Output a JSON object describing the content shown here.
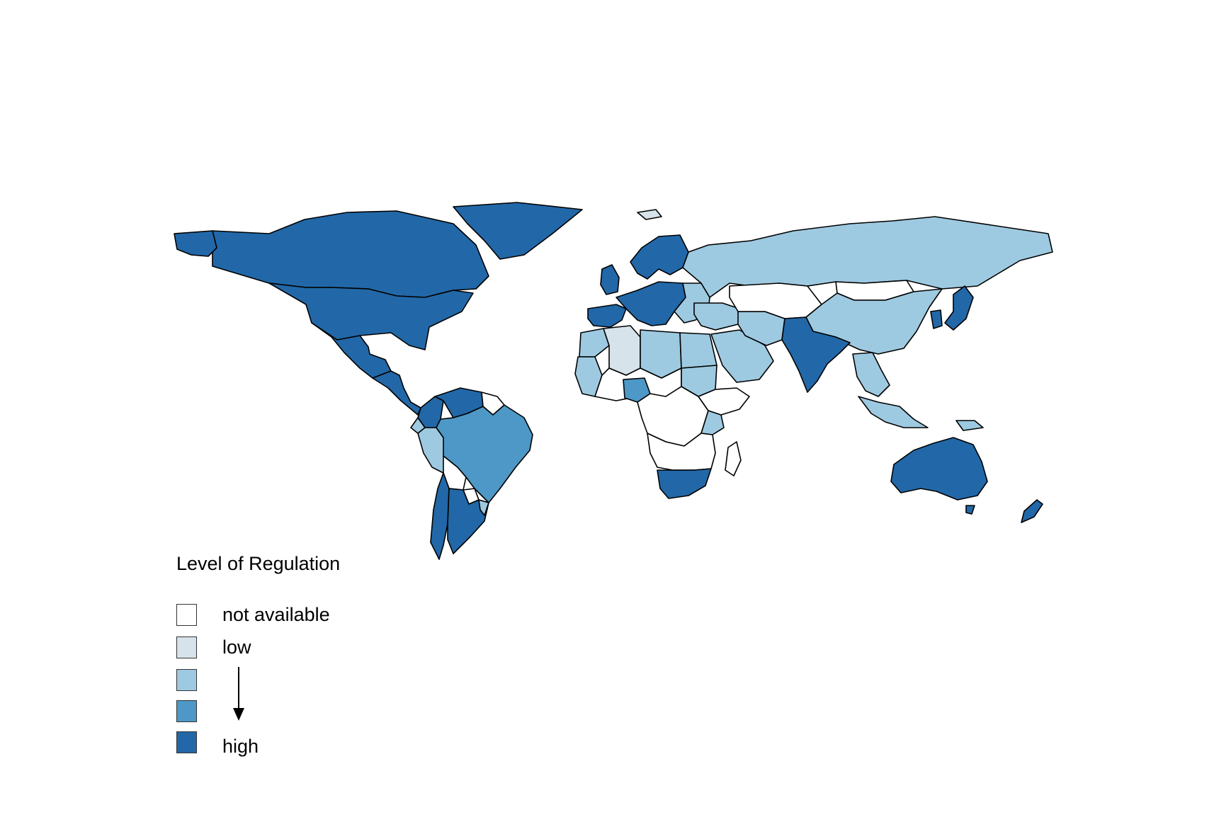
{
  "legend": {
    "title": "Level of Regulation",
    "categories": [
      {
        "label": "not available",
        "color": "#ffffff",
        "level": 0
      },
      {
        "label": "low",
        "color": "#d7e3ea",
        "level": 1
      },
      {
        "label": "",
        "color": "#9ecae1",
        "level": 2
      },
      {
        "label": "",
        "color": "#4d98c6",
        "level": 3
      },
      {
        "label": "high",
        "color": "#2268a8",
        "level": 4
      }
    ]
  },
  "regions": [
    {
      "name": "Canada",
      "level": 4
    },
    {
      "name": "Alaska",
      "level": 4
    },
    {
      "name": "Greenland",
      "level": 4
    },
    {
      "name": "United States",
      "level": 4
    },
    {
      "name": "Mexico",
      "level": 4
    },
    {
      "name": "Central America",
      "level": 4
    },
    {
      "name": "Colombia",
      "level": 4
    },
    {
      "name": "Venezuela",
      "level": 4
    },
    {
      "name": "Guianas",
      "level": 0
    },
    {
      "name": "Ecuador",
      "level": 2
    },
    {
      "name": "Peru",
      "level": 2
    },
    {
      "name": "Brazil",
      "level": 3
    },
    {
      "name": "Bolivia",
      "level": 0
    },
    {
      "name": "Paraguay",
      "level": 0
    },
    {
      "name": "Chile",
      "level": 4
    },
    {
      "name": "Argentina",
      "level": 4
    },
    {
      "name": "Uruguay",
      "level": 2
    },
    {
      "name": "Iceland",
      "level": 1
    },
    {
      "name": "Scandinavia",
      "level": 4
    },
    {
      "name": "United Kingdom",
      "level": 4
    },
    {
      "name": "Western Europe",
      "level": 4
    },
    {
      "name": "Iberia",
      "level": 4
    },
    {
      "name": "Eastern Europe",
      "level": 2
    },
    {
      "name": "Russia",
      "level": 2
    },
    {
      "name": "Morocco",
      "level": 2
    },
    {
      "name": "Algeria",
      "level": 1
    },
    {
      "name": "Libya",
      "level": 2
    },
    {
      "name": "Egypt",
      "level": 2
    },
    {
      "name": "West Africa coast",
      "level": 2
    },
    {
      "name": "Sahel",
      "level": 0
    },
    {
      "name": "Nigeria",
      "level": 3
    },
    {
      "name": "Sudan",
      "level": 2
    },
    {
      "name": "Central Africa",
      "level": 0
    },
    {
      "name": "Horn of Africa",
      "level": 0
    },
    {
      "name": "Kenya",
      "level": 2
    },
    {
      "name": "Southern Africa",
      "level": 0
    },
    {
      "name": "South Africa",
      "level": 4
    },
    {
      "name": "Madagascar",
      "level": 0
    },
    {
      "name": "Middle East",
      "level": 2
    },
    {
      "name": "Arabian Peninsula",
      "level": 2
    },
    {
      "name": "Iran",
      "level": 2
    },
    {
      "name": "Central Asia",
      "level": 0
    },
    {
      "name": "Mongolia",
      "level": 0
    },
    {
      "name": "China",
      "level": 2
    },
    {
      "name": "India",
      "level": 4
    },
    {
      "name": "Japan",
      "level": 4
    },
    {
      "name": "Korea",
      "level": 4
    },
    {
      "name": "Southeast Asia",
      "level": 2
    },
    {
      "name": "Indonesia",
      "level": 2
    },
    {
      "name": "Papua New Guinea",
      "level": 2
    },
    {
      "name": "Australia",
      "level": 4
    },
    {
      "name": "Tasmania",
      "level": 4
    },
    {
      "name": "New Zealand",
      "level": 4
    }
  ]
}
